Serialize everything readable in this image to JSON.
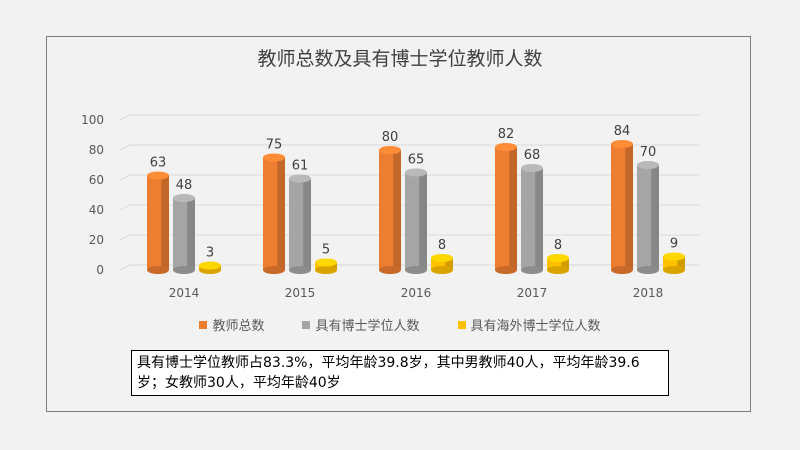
{
  "chart_data": {
    "type": "bar",
    "title": "教师总数及具有博士学位教师人数",
    "categories": [
      "2014",
      "2015",
      "2016",
      "2017",
      "2018"
    ],
    "series": [
      {
        "name": "教师总数",
        "values": [
          63,
          75,
          80,
          82,
          84
        ],
        "color": "#ed7d31"
      },
      {
        "name": "具有博士学位人数",
        "values": [
          48,
          61,
          65,
          68,
          70
        ],
        "color": "#a5a5a5"
      },
      {
        "name": "具有海外博士学位人数",
        "values": [
          3,
          5,
          8,
          8,
          9
        ],
        "color": "#ffc000"
      }
    ],
    "yticks": [
      "0",
      "20",
      "40",
      "60",
      "80",
      "100"
    ],
    "ylim": [
      0,
      100
    ],
    "grid": true,
    "legend_position": "bottom"
  },
  "summary": {
    "text": "具有博士学位教师占83.3%，平均年龄39.8岁，其中男教师40人，平均年龄39.6岁；女教师30人，平均年龄40岁"
  }
}
